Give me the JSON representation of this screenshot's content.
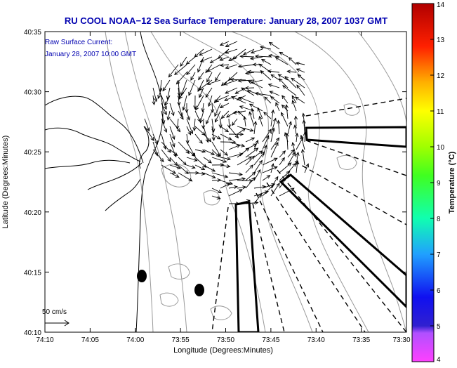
{
  "title": "RU COOL  NOAA−12  Sea Surface Temperature:  January 28, 2007 1037 GMT",
  "current_label": {
    "line1": "Raw Surface Current:",
    "line2": "January 28, 2007 10:00 GMT"
  },
  "scale_label": "50 cm/s",
  "x_axis": {
    "label": "Longitude (Degrees:Minutes)",
    "ticks": [
      "74:10",
      "74:05",
      "74:00",
      "73:55",
      "73:50",
      "73:45",
      "73:40",
      "73:35",
      "73:30"
    ]
  },
  "y_axis": {
    "label": "Latitude (Degrees:Minutes)",
    "ticks": [
      "40:10",
      "40:15",
      "40:20",
      "40:25",
      "40:30",
      "40:35"
    ]
  },
  "colorbar": {
    "label": "Temperature (°C)",
    "ticks": [
      "4",
      "5",
      "6",
      "7",
      "8",
      "9",
      "10",
      "11",
      "12",
      "13",
      "14"
    ],
    "range": [
      4,
      14
    ]
  },
  "colors": {
    "title": "#0000b0",
    "annotation": "#0000b0",
    "contour": "#999999",
    "coast": "#000000"
  }
}
